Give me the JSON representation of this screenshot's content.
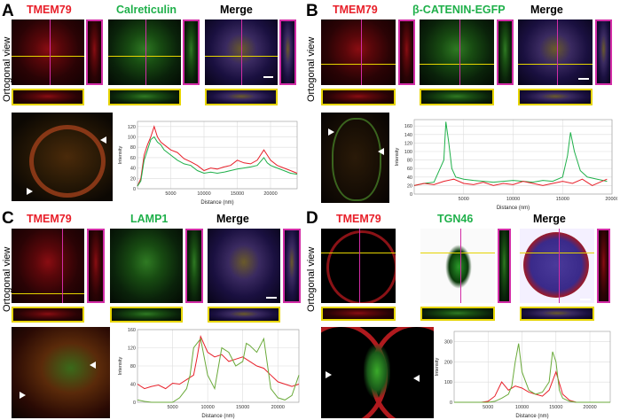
{
  "panels": {
    "A": {
      "letter": "A",
      "ortho": "Ortogonal view",
      "c1": "TMEM79",
      "c2": "Calreticulin",
      "c3": "Merge"
    },
    "B": {
      "letter": "B",
      "ortho": "Ortogonal view",
      "c1": "TMEM79",
      "c2": "β-CATENIN-EGFP",
      "c3": "Merge"
    },
    "C": {
      "letter": "C",
      "ortho": "Ortogonal view",
      "c1": "TMEM79",
      "c2": "LAMP1",
      "c3": "Merge"
    },
    "D": {
      "letter": "D",
      "ortho": "Ortogonal view",
      "c1": "TMEM79",
      "c2": "TGN46",
      "c3": "Merge"
    }
  },
  "colors": {
    "red": "#e8202a",
    "green": "#1fb04a"
  },
  "chart_data": [
    {
      "type": "line",
      "panel": "A",
      "xlabel": "Distance (nm)",
      "ylabel": "Intensity",
      "xlim": [
        0,
        24000
      ],
      "ylim": [
        0,
        130
      ],
      "xticks": [
        "5000",
        "10000",
        "15000",
        "20000"
      ],
      "yticks": [
        "0",
        "20",
        "40",
        "60",
        "80",
        "100",
        "120"
      ],
      "grid": true,
      "series": [
        {
          "color": "#e8202a",
          "x": [
            0,
            500,
            1000,
            1500,
            2000,
            2500,
            3000,
            3500,
            4000,
            5000,
            6000,
            7000,
            8000,
            9000,
            10000,
            11000,
            12000,
            13000,
            14000,
            15000,
            16000,
            17000,
            18000,
            19000,
            19500,
            20000,
            21000,
            22000,
            23000,
            24000
          ],
          "values": [
            5,
            20,
            65,
            85,
            100,
            120,
            100,
            90,
            85,
            75,
            70,
            58,
            52,
            45,
            35,
            40,
            38,
            42,
            45,
            55,
            50,
            48,
            55,
            75,
            65,
            55,
            45,
            40,
            35,
            30
          ]
        },
        {
          "color": "#1fb04a",
          "x": [
            0,
            500,
            1000,
            1500,
            2000,
            2500,
            3000,
            3500,
            4000,
            5000,
            6000,
            7000,
            8000,
            9000,
            10000,
            11000,
            12000,
            13000,
            14000,
            15000,
            16000,
            17000,
            18000,
            19000,
            19500,
            20000,
            21000,
            22000,
            23000,
            24000
          ],
          "values": [
            5,
            15,
            55,
            75,
            95,
            100,
            90,
            85,
            75,
            65,
            55,
            48,
            45,
            35,
            30,
            32,
            30,
            32,
            35,
            38,
            40,
            42,
            45,
            60,
            50,
            45,
            40,
            35,
            30,
            28
          ]
        }
      ]
    },
    {
      "type": "line",
      "panel": "B",
      "xlabel": "Distance (nm)",
      "ylabel": "Intensity",
      "xlim": [
        0,
        20000
      ],
      "ylim": [
        0,
        175
      ],
      "xticks": [
        "5000",
        "10000",
        "15000",
        "20000"
      ],
      "yticks": [
        "0",
        "20",
        "40",
        "60",
        "80",
        "100",
        "120",
        "140",
        "160"
      ],
      "grid": true,
      "series": [
        {
          "color": "#1fb04a",
          "x": [
            0,
            1000,
            2000,
            3000,
            3200,
            3500,
            3800,
            4200,
            5000,
            6000,
            7000,
            8000,
            9000,
            10000,
            11000,
            12000,
            13000,
            14000,
            15000,
            15500,
            15800,
            16200,
            16800,
            17500,
            18500,
            19500
          ],
          "values": [
            20,
            25,
            28,
            80,
            170,
            120,
            60,
            40,
            35,
            32,
            30,
            28,
            30,
            32,
            30,
            28,
            32,
            30,
            40,
            90,
            145,
            100,
            55,
            40,
            35,
            30
          ]
        },
        {
          "color": "#e8202a",
          "x": [
            0,
            1000,
            2000,
            3000,
            4000,
            5000,
            6000,
            7000,
            8000,
            9000,
            10000,
            11000,
            12000,
            13000,
            14000,
            15000,
            16000,
            17000,
            18000,
            19000,
            19500
          ],
          "values": [
            20,
            25,
            22,
            30,
            35,
            25,
            22,
            28,
            20,
            25,
            22,
            30,
            25,
            20,
            25,
            30,
            25,
            35,
            20,
            30,
            35
          ]
        }
      ]
    },
    {
      "type": "line",
      "panel": "C",
      "xlabel": "Distance (nm)",
      "ylabel": "Intensity",
      "xlim": [
        0,
        23000
      ],
      "ylim": [
        0,
        160
      ],
      "xticks": [
        "5000",
        "10000",
        "15000",
        "20000"
      ],
      "yticks": [
        "0",
        "40",
        "80",
        "120",
        "160"
      ],
      "grid": true,
      "series": [
        {
          "color": "#e8202a",
          "x": [
            0,
            1000,
            2000,
            3000,
            4000,
            5000,
            6000,
            7000,
            8000,
            8500,
            9000,
            10000,
            11000,
            12000,
            13000,
            14000,
            15000,
            16000,
            17000,
            18000,
            19000,
            20000,
            21000,
            22000,
            23000
          ],
          "values": [
            40,
            30,
            35,
            38,
            30,
            42,
            40,
            50,
            60,
            100,
            145,
            110,
            100,
            105,
            90,
            95,
            100,
            90,
            80,
            75,
            60,
            45,
            40,
            35,
            40
          ]
        },
        {
          "color": "#6aaa3a",
          "x": [
            0,
            1000,
            2000,
            3000,
            4000,
            5000,
            6000,
            7000,
            7500,
            8000,
            9000,
            10000,
            11000,
            12000,
            13000,
            14000,
            15000,
            15500,
            16000,
            17000,
            18000,
            19000,
            20000,
            21000,
            22000,
            23000
          ],
          "values": [
            5,
            2,
            0,
            0,
            0,
            0,
            10,
            30,
            60,
            120,
            140,
            60,
            30,
            120,
            110,
            80,
            90,
            130,
            125,
            110,
            140,
            30,
            10,
            5,
            15,
            60
          ]
        }
      ]
    },
    {
      "type": "line",
      "panel": "D",
      "xlabel": "Distance (nm)",
      "ylabel": "Intensity",
      "xlim": [
        0,
        23000
      ],
      "ylim": [
        0,
        350
      ],
      "xticks": [
        "5000",
        "10000",
        "15000",
        "20000"
      ],
      "yticks": [
        "0",
        "100",
        "200",
        "300"
      ],
      "ytick_values": [
        0,
        100,
        200,
        300
      ],
      "grid": true,
      "series": [
        {
          "color": "#e8202a",
          "x": [
            0,
            2000,
            4000,
            5000,
            6000,
            7000,
            8000,
            9000,
            10000,
            11000,
            12000,
            13000,
            14000,
            15000,
            16000,
            17000,
            18000,
            20000,
            23000
          ],
          "values": [
            0,
            0,
            0,
            5,
            30,
            100,
            60,
            80,
            70,
            50,
            40,
            30,
            60,
            150,
            40,
            10,
            0,
            0,
            0
          ]
        },
        {
          "color": "#6aaa3a",
          "x": [
            0,
            2000,
            4000,
            5000,
            6000,
            7000,
            8000,
            8500,
            9000,
            9500,
            10000,
            11000,
            12000,
            13000,
            14000,
            14500,
            15000,
            15500,
            16000,
            17000,
            18000,
            20000,
            23000
          ],
          "values": [
            0,
            0,
            0,
            0,
            5,
            20,
            40,
            80,
            200,
            290,
            150,
            60,
            40,
            50,
            100,
            250,
            200,
            60,
            20,
            5,
            0,
            0,
            0
          ]
        }
      ]
    }
  ]
}
